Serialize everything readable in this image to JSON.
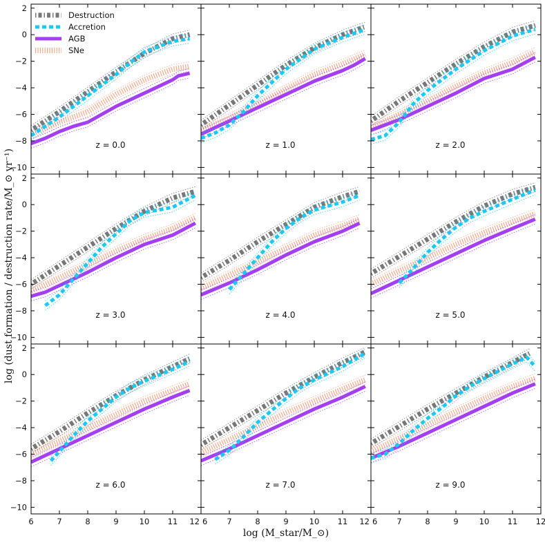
{
  "chart_data": {
    "type": "line",
    "xlabel": "log (M_star/M_⊙)",
    "ylabel": "log (dust formation / destruction rate/M_⊙ yr⁻¹)",
    "xlim": [
      6,
      12
    ],
    "ylim": [
      -10.5,
      2.3
    ],
    "xticks": [
      "6",
      "7",
      "8",
      "9",
      "10",
      "11",
      "12"
    ],
    "yticks": [
      "2",
      "0",
      "−2",
      "−4",
      "−6",
      "−8",
      "−10"
    ],
    "legend": {
      "placement": "top-left of first panel",
      "entries": [
        {
          "label": "Destruction",
          "color": "#777777"
        },
        {
          "label": "Accretion",
          "color": "#1ec8f0"
        },
        {
          "label": "AGB",
          "color": "#a33ff0"
        },
        {
          "label": "SNe",
          "color": "#f4a88a"
        }
      ]
    },
    "colors": {
      "Destruction": "#777777",
      "Accretion": "#1ec8f0",
      "AGB": "#a33ff0",
      "SNe": "#f4a88a"
    },
    "panels": [
      {
        "label": "z = 0.0",
        "series": {
          "Destruction": {
            "x": [
              6.0,
              7.0,
              8.0,
              9.0,
              10.0,
              11.0,
              11.6
            ],
            "y": [
              -7.2,
              -5.8,
              -4.3,
              -2.8,
              -1.4,
              -0.3,
              0.0
            ]
          },
          "Accretion": {
            "x": [
              6.0,
              7.0,
              8.0,
              9.0,
              9.5,
              10.0,
              11.0,
              11.6
            ],
            "y": [
              -7.6,
              -6.2,
              -4.6,
              -3.0,
              -2.1,
              -1.3,
              -0.5,
              -0.3
            ]
          },
          "AGB": {
            "x": [
              6.0,
              6.5,
              7.0,
              7.5,
              8.0,
              9.0,
              10.0,
              10.5,
              11.0,
              11.2,
              11.6
            ],
            "y": [
              -8.2,
              -7.8,
              -7.3,
              -6.9,
              -6.6,
              -5.4,
              -4.4,
              -3.9,
              -3.4,
              -3.1,
              -2.9
            ]
          },
          "SNe": {
            "x": [
              6.0,
              7.0,
              8.0,
              9.0,
              10.0,
              11.0,
              11.6
            ],
            "y": [
              -7.5,
              -6.6,
              -5.8,
              -4.5,
              -3.4,
              -2.6,
              -2.4
            ]
          }
        }
      },
      {
        "label": "z = 1.0",
        "series": {
          "Destruction": {
            "x": [
              6.0,
              7.0,
              8.0,
              9.0,
              10.0,
              11.0,
              11.8
            ],
            "y": [
              -6.8,
              -5.3,
              -3.8,
              -2.3,
              -1.0,
              0.0,
              0.6
            ]
          },
          "Accretion": {
            "x": [
              6.0,
              6.5,
              7.0,
              7.5,
              8.0,
              8.5,
              9.0,
              10.0,
              11.0,
              11.8
            ],
            "y": [
              -7.8,
              -7.4,
              -6.8,
              -5.8,
              -4.6,
              -3.6,
              -2.6,
              -1.1,
              -0.2,
              0.4
            ]
          },
          "AGB": {
            "x": [
              6.0,
              7.0,
              8.0,
              9.0,
              10.0,
              11.0,
              11.4,
              11.8
            ],
            "y": [
              -7.5,
              -6.5,
              -5.5,
              -4.5,
              -3.5,
              -2.7,
              -2.3,
              -1.8
            ]
          },
          "SNe": {
            "x": [
              6.0,
              7.0,
              8.0,
              9.0,
              10.0,
              11.0,
              11.8
            ],
            "y": [
              -7.2,
              -6.3,
              -5.2,
              -4.1,
              -3.0,
              -2.2,
              -1.5
            ]
          }
        }
      },
      {
        "label": "z = 2.0",
        "series": {
          "Destruction": {
            "x": [
              6.0,
              7.0,
              8.0,
              9.0,
              10.0,
              11.0,
              11.8
            ],
            "y": [
              -6.5,
              -5.0,
              -3.6,
              -2.2,
              -0.9,
              0.2,
              0.7
            ]
          },
          "Accretion": {
            "x": [
              6.0,
              6.5,
              7.0,
              7.5,
              8.0,
              9.0,
              10.0,
              11.0,
              11.8
            ],
            "y": [
              -7.9,
              -7.6,
              -6.6,
              -5.2,
              -4.2,
              -2.6,
              -1.2,
              -0.1,
              0.4
            ]
          },
          "AGB": {
            "x": [
              6.0,
              6.5,
              7.0,
              7.5,
              8.0,
              9.0,
              10.0,
              11.0,
              11.8
            ],
            "y": [
              -7.2,
              -6.8,
              -6.4,
              -5.9,
              -5.4,
              -4.4,
              -3.3,
              -2.6,
              -1.7
            ]
          },
          "SNe": {
            "x": [
              6.0,
              7.0,
              8.0,
              9.0,
              10.0,
              11.0,
              11.8
            ],
            "y": [
              -7.0,
              -6.0,
              -5.0,
              -3.9,
              -2.9,
              -2.1,
              -1.3
            ]
          }
        }
      },
      {
        "label": "z = 3.0",
        "series": {
          "Destruction": {
            "x": [
              6.0,
              7.0,
              8.0,
              9.0,
              10.0,
              11.0,
              11.8
            ],
            "y": [
              -6.0,
              -4.6,
              -3.2,
              -1.8,
              -0.5,
              0.5,
              1.0
            ]
          },
          "Accretion": {
            "x": [
              6.5,
              7.0,
              7.5,
              8.0,
              8.5,
              9.0,
              9.5,
              10.0,
              11.0,
              11.8
            ],
            "y": [
              -7.6,
              -6.8,
              -5.6,
              -4.4,
              -3.2,
              -2.2,
              -1.2,
              -0.6,
              -0.2,
              0.7
            ]
          },
          "AGB": {
            "x": [
              6.0,
              6.5,
              7.0,
              7.5,
              8.0,
              9.0,
              10.0,
              11.0,
              11.8
            ],
            "y": [
              -6.9,
              -6.6,
              -6.1,
              -5.6,
              -5.1,
              -4.0,
              -3.0,
              -2.3,
              -1.4
            ]
          },
          "SNe": {
            "x": [
              6.0,
              7.0,
              8.0,
              9.0,
              10.0,
              11.0,
              11.8
            ],
            "y": [
              -6.5,
              -5.5,
              -4.5,
              -3.5,
              -2.6,
              -1.8,
              -1.0
            ]
          }
        }
      },
      {
        "label": "z = 4.0",
        "series": {
          "Destruction": {
            "x": [
              6.0,
              7.0,
              8.0,
              9.0,
              10.0,
              11.0,
              11.6
            ],
            "y": [
              -5.5,
              -4.2,
              -2.8,
              -1.5,
              -0.2,
              0.6,
              1.0
            ]
          },
          "Accretion": {
            "x": [
              7.0,
              7.5,
              8.0,
              8.5,
              9.0,
              9.5,
              10.0,
              11.0,
              11.6
            ],
            "y": [
              -6.4,
              -5.2,
              -4.0,
              -2.8,
              -1.8,
              -1.0,
              -0.4,
              0.2,
              0.7
            ]
          },
          "AGB": {
            "x": [
              6.0,
              7.0,
              8.0,
              9.0,
              10.0,
              11.0,
              11.6
            ],
            "y": [
              -6.8,
              -5.9,
              -4.9,
              -3.8,
              -2.8,
              -2.0,
              -1.4
            ]
          },
          "SNe": {
            "x": [
              6.0,
              7.0,
              8.0,
              9.0,
              10.0,
              11.0,
              11.6
            ],
            "y": [
              -6.3,
              -5.3,
              -4.3,
              -3.3,
              -2.3,
              -1.6,
              -1.1
            ]
          }
        }
      },
      {
        "label": "z = 5.0",
        "series": {
          "Destruction": {
            "x": [
              6.0,
              7.0,
              8.0,
              9.0,
              10.0,
              11.0,
              11.8
            ],
            "y": [
              -5.2,
              -3.9,
              -2.6,
              -1.3,
              -0.1,
              0.8,
              1.3
            ]
          },
          "Accretion": {
            "x": [
              7.0,
              7.5,
              8.0,
              8.5,
              9.0,
              9.5,
              10.0,
              11.0,
              11.8
            ],
            "y": [
              -5.9,
              -4.8,
              -3.6,
              -2.6,
              -1.7,
              -1.0,
              -0.5,
              0.4,
              1.1
            ]
          },
          "AGB": {
            "x": [
              6.0,
              7.0,
              8.0,
              9.0,
              10.0,
              11.0,
              11.8
            ],
            "y": [
              -6.7,
              -5.7,
              -4.7,
              -3.7,
              -2.7,
              -1.8,
              -1.1
            ]
          },
          "SNe": {
            "x": [
              6.0,
              7.0,
              8.0,
              9.0,
              10.0,
              11.0,
              11.8
            ],
            "y": [
              -6.0,
              -5.0,
              -4.0,
              -3.0,
              -2.1,
              -1.3,
              -0.7
            ]
          }
        }
      },
      {
        "label": "z = 6.0",
        "series": {
          "Destruction": {
            "x": [
              6.0,
              7.0,
              8.0,
              9.0,
              10.0,
              11.0,
              11.6
            ],
            "y": [
              -5.6,
              -4.3,
              -2.9,
              -1.6,
              -0.4,
              0.6,
              1.2
            ]
          },
          "Accretion": {
            "x": [
              6.7,
              7.0,
              7.5,
              8.0,
              8.5,
              9.0,
              9.5,
              10.0,
              11.0,
              11.6
            ],
            "y": [
              -6.5,
              -5.8,
              -4.6,
              -3.5,
              -2.6,
              -1.7,
              -1.0,
              -0.5,
              0.4,
              1.0
            ]
          },
          "AGB": {
            "x": [
              6.0,
              7.0,
              8.0,
              9.0,
              10.0,
              11.0,
              11.6
            ],
            "y": [
              -6.6,
              -5.6,
              -4.6,
              -3.6,
              -2.6,
              -1.7,
              -1.2
            ]
          },
          "SNe": {
            "x": [
              6.0,
              7.0,
              8.0,
              9.0,
              10.0,
              11.0,
              11.6
            ],
            "y": [
              -6.0,
              -5.0,
              -4.0,
              -3.0,
              -2.0,
              -1.2,
              -0.7
            ]
          }
        }
      },
      {
        "label": "z = 7.0",
        "series": {
          "Destruction": {
            "x": [
              6.0,
              7.0,
              8.0,
              9.0,
              10.0,
              11.0,
              11.8
            ],
            "y": [
              -5.3,
              -4.0,
              -2.7,
              -1.4,
              -0.2,
              0.9,
              1.7
            ]
          },
          "Accretion": {
            "x": [
              6.5,
              7.0,
              7.5,
              8.0,
              8.5,
              9.0,
              9.5,
              10.0,
              11.0,
              11.8
            ],
            "y": [
              -6.4,
              -5.7,
              -4.7,
              -3.6,
              -2.7,
              -1.8,
              -1.0,
              -0.4,
              0.6,
              1.6
            ]
          },
          "AGB": {
            "x": [
              6.0,
              7.0,
              8.0,
              9.0,
              10.0,
              11.0,
              11.8
            ],
            "y": [
              -6.5,
              -5.6,
              -4.6,
              -3.6,
              -2.6,
              -1.7,
              -0.9
            ]
          },
          "SNe": {
            "x": [
              6.0,
              7.0,
              8.0,
              9.0,
              10.0,
              11.0,
              11.8
            ],
            "y": [
              -5.9,
              -4.9,
              -3.9,
              -2.9,
              -2.0,
              -1.1,
              -0.4
            ]
          }
        }
      },
      {
        "label": "z = 9.0",
        "series": {
          "Destruction": {
            "x": [
              6.0,
              7.0,
              8.0,
              9.0,
              10.0,
              11.0,
              11.6
            ],
            "y": [
              -5.2,
              -3.9,
              -2.6,
              -1.4,
              -0.2,
              0.9,
              1.6
            ]
          },
          "Accretion": {
            "x": [
              6.0,
              6.5,
              7.0,
              7.5,
              8.0,
              8.5,
              9.0,
              9.5,
              10.0,
              11.0,
              11.5,
              11.8
            ],
            "y": [
              -6.3,
              -6.0,
              -5.2,
              -4.2,
              -3.3,
              -2.5,
              -1.6,
              -0.9,
              -0.3,
              0.8,
              1.3,
              0.6
            ]
          },
          "AGB": {
            "x": [
              6.0,
              7.0,
              8.0,
              9.0,
              10.0,
              11.0,
              11.8
            ],
            "y": [
              -6.3,
              -5.4,
              -4.4,
              -3.4,
              -2.4,
              -1.4,
              -0.7
            ]
          },
          "SNe": {
            "x": [
              6.0,
              7.0,
              8.0,
              9.0,
              10.0,
              11.0,
              11.8
            ],
            "y": [
              -5.8,
              -4.8,
              -3.8,
              -2.8,
              -1.8,
              -0.9,
              -0.3
            ]
          }
        }
      }
    ]
  }
}
